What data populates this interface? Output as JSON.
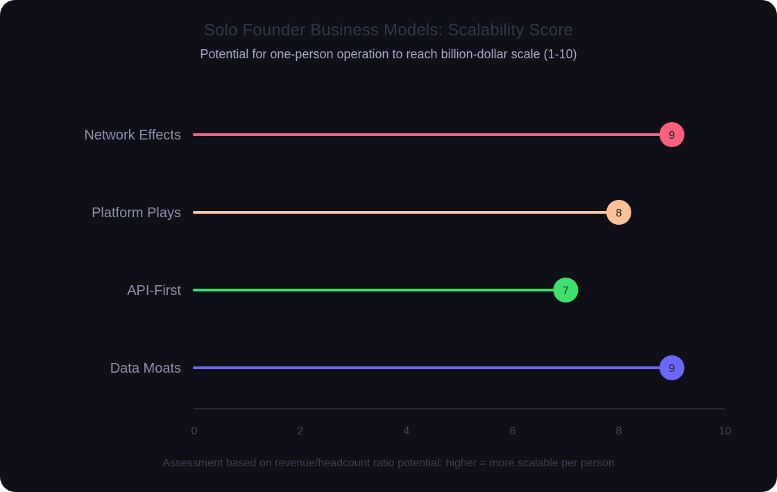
{
  "chart_data": {
    "type": "bar",
    "orientation": "horizontal",
    "style": "lollipop",
    "title": "Solo Founder Business Models: Scalability Score",
    "subtitle": "Potential for one-person operation to reach billion-dollar scale (1-10)",
    "footnote": "Assessment based on revenue/headcount ratio potential: higher = more scalable per person",
    "categories": [
      "Network Effects",
      "Platform Plays",
      "API-First",
      "Data Moats"
    ],
    "values": [
      9,
      8,
      7,
      9
    ],
    "value_labels": [
      "9",
      "8",
      "7",
      "9"
    ],
    "colors": [
      "#fb5f7e",
      "#fcc399",
      "#3ee06e",
      "#6e67fb"
    ],
    "xlim": [
      0,
      10
    ],
    "xticks": [
      0,
      2,
      4,
      6,
      8,
      10
    ],
    "xtick_labels": [
      "0",
      "2",
      "4",
      "6",
      "8",
      "10"
    ],
    "grid": false,
    "legend": "none"
  }
}
